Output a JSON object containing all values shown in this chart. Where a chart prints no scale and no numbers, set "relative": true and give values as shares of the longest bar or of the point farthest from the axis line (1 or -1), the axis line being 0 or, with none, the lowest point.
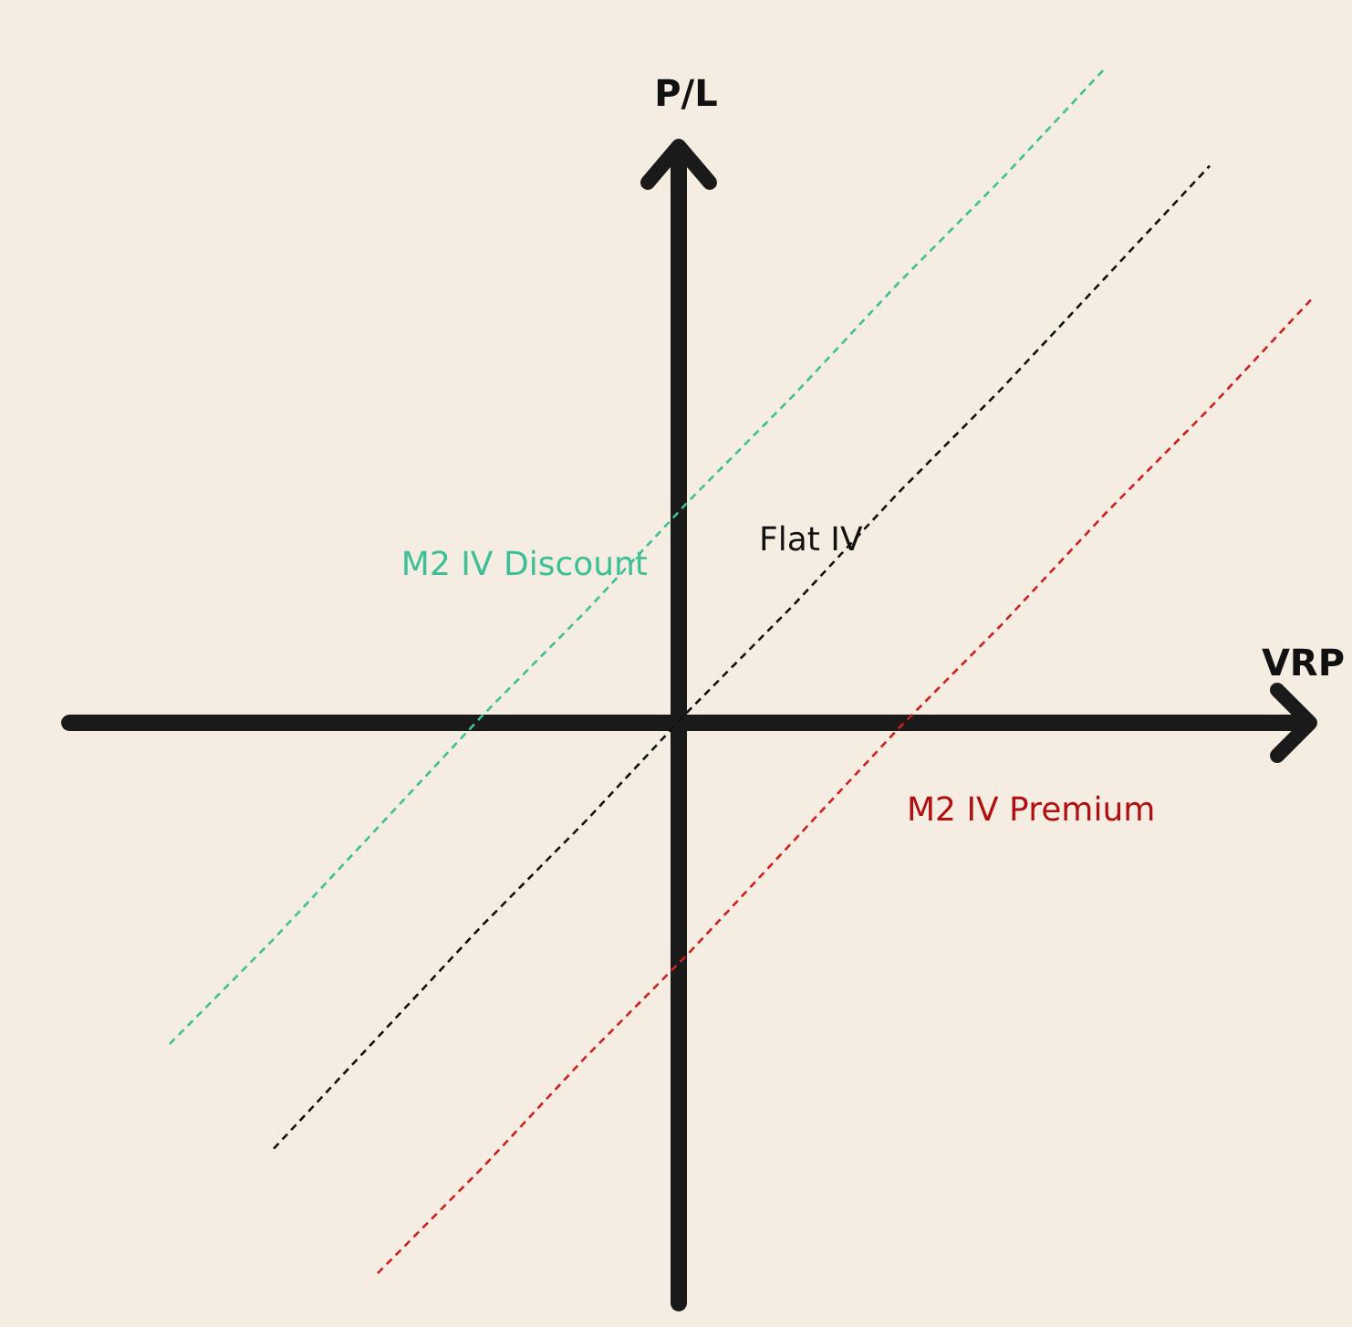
{
  "chart_data": {
    "type": "line",
    "relative": true,
    "xlabel": "VRP",
    "ylabel": "P/L",
    "categories": [
      null,
      null,
      null,
      null,
      null,
      null,
      null,
      null,
      null,
      null,
      null,
      null,
      null
    ],
    "line_style": "dashed",
    "marker": "none",
    "series": [
      {
        "name": "M2 IV Discount",
        "color": "#3dbf98",
        "values": [
          null,
          -0.49,
          -0.33,
          -0.16,
          0.01,
          0.17,
          0.34,
          0.5,
          0.67,
          0.83,
          1.0,
          null,
          null
        ]
      },
      {
        "name": "Flat IV",
        "color": "#111111",
        "values": [
          null,
          null,
          -0.65,
          -0.48,
          -0.31,
          -0.15,
          0.02,
          0.18,
          0.35,
          0.51,
          0.68,
          0.85,
          null
        ]
      },
      {
        "name": "M2 IV Premium",
        "color": "#cc1f1f",
        "values": [
          null,
          null,
          null,
          -0.84,
          -0.68,
          -0.51,
          -0.35,
          -0.18,
          -0.01,
          0.15,
          0.32,
          0.48,
          0.65
        ]
      }
    ]
  }
}
